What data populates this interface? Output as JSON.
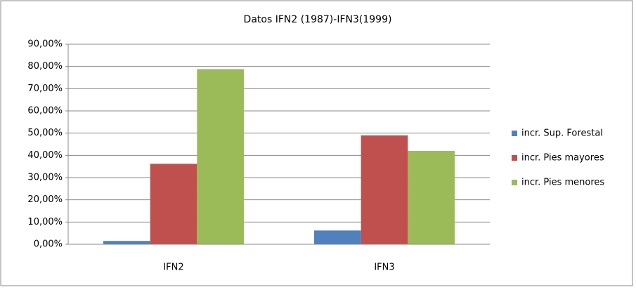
{
  "chart_data": {
    "type": "bar",
    "title": "Datos IFN2 (1987)-IFN3(1999)",
    "categories": [
      "IFN2",
      "IFN3"
    ],
    "series": [
      {
        "name": "incr. Sup. Forestal",
        "color": "#4f81bd",
        "values": [
          1.5,
          6.2
        ]
      },
      {
        "name": "incr. Pies mayores",
        "color": "#c0504d",
        "values": [
          36.2,
          49.0
        ]
      },
      {
        "name": "incr. Pies menores",
        "color": "#9bbb59",
        "values": [
          78.8,
          42.0
        ]
      }
    ],
    "ylim": [
      0,
      90
    ],
    "yticks": [
      {
        "value": 0,
        "label": "0,00%"
      },
      {
        "value": 10,
        "label": "10,00%"
      },
      {
        "value": 20,
        "label": "20,00%"
      },
      {
        "value": 30,
        "label": "30,00%"
      },
      {
        "value": 40,
        "label": "40,00%"
      },
      {
        "value": 50,
        "label": "50,00%"
      },
      {
        "value": 60,
        "label": "60,00%"
      },
      {
        "value": 70,
        "label": "70,00%"
      },
      {
        "value": 80,
        "label": "80,00%"
      },
      {
        "value": 90,
        "label": "90,00%"
      }
    ],
    "grid": true,
    "legend": "right"
  }
}
